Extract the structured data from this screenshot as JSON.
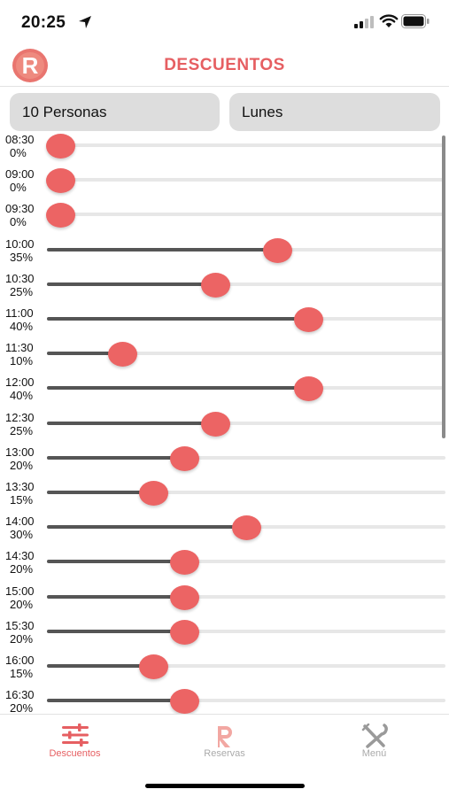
{
  "status": {
    "time": "20:25"
  },
  "header": {
    "title": "DESCUENTOS",
    "logo_letter": "R"
  },
  "filters": {
    "people": "10 Personas",
    "day": "Lunes"
  },
  "slots": [
    {
      "time": "08:30",
      "discount": "0%",
      "value": 0
    },
    {
      "time": "09:00",
      "discount": "0%",
      "value": 0
    },
    {
      "time": "09:30",
      "discount": "0%",
      "value": 0
    },
    {
      "time": "10:00",
      "discount": "35%",
      "value": 35
    },
    {
      "time": "10:30",
      "discount": "25%",
      "value": 25
    },
    {
      "time": "11:00",
      "discount": "40%",
      "value": 40
    },
    {
      "time": "11:30",
      "discount": "10%",
      "value": 10
    },
    {
      "time": "12:00",
      "discount": "40%",
      "value": 40
    },
    {
      "time": "12:30",
      "discount": "25%",
      "value": 25
    },
    {
      "time": "13:00",
      "discount": "20%",
      "value": 20
    },
    {
      "time": "13:30",
      "discount": "15%",
      "value": 15
    },
    {
      "time": "14:00",
      "discount": "30%",
      "value": 30
    },
    {
      "time": "14:30",
      "discount": "20%",
      "value": 20
    },
    {
      "time": "15:00",
      "discount": "20%",
      "value": 20
    },
    {
      "time": "15:30",
      "discount": "20%",
      "value": 20
    },
    {
      "time": "16:00",
      "discount": "15%",
      "value": 15
    },
    {
      "time": "16:30",
      "discount": "20%",
      "value": 20
    }
  ],
  "slider_max": 50,
  "tabs": [
    {
      "label": "Descuentos",
      "icon": "sliders-icon",
      "active": true
    },
    {
      "label": "Reservas",
      "icon": "reservas-logo-icon",
      "active": false
    },
    {
      "label": "Menú",
      "icon": "cutlery-icon",
      "active": false
    }
  ],
  "colors": {
    "accent": "#e65f62",
    "thumb": "#ec6464",
    "track_fill": "#555555",
    "track": "#e7e7e7"
  }
}
